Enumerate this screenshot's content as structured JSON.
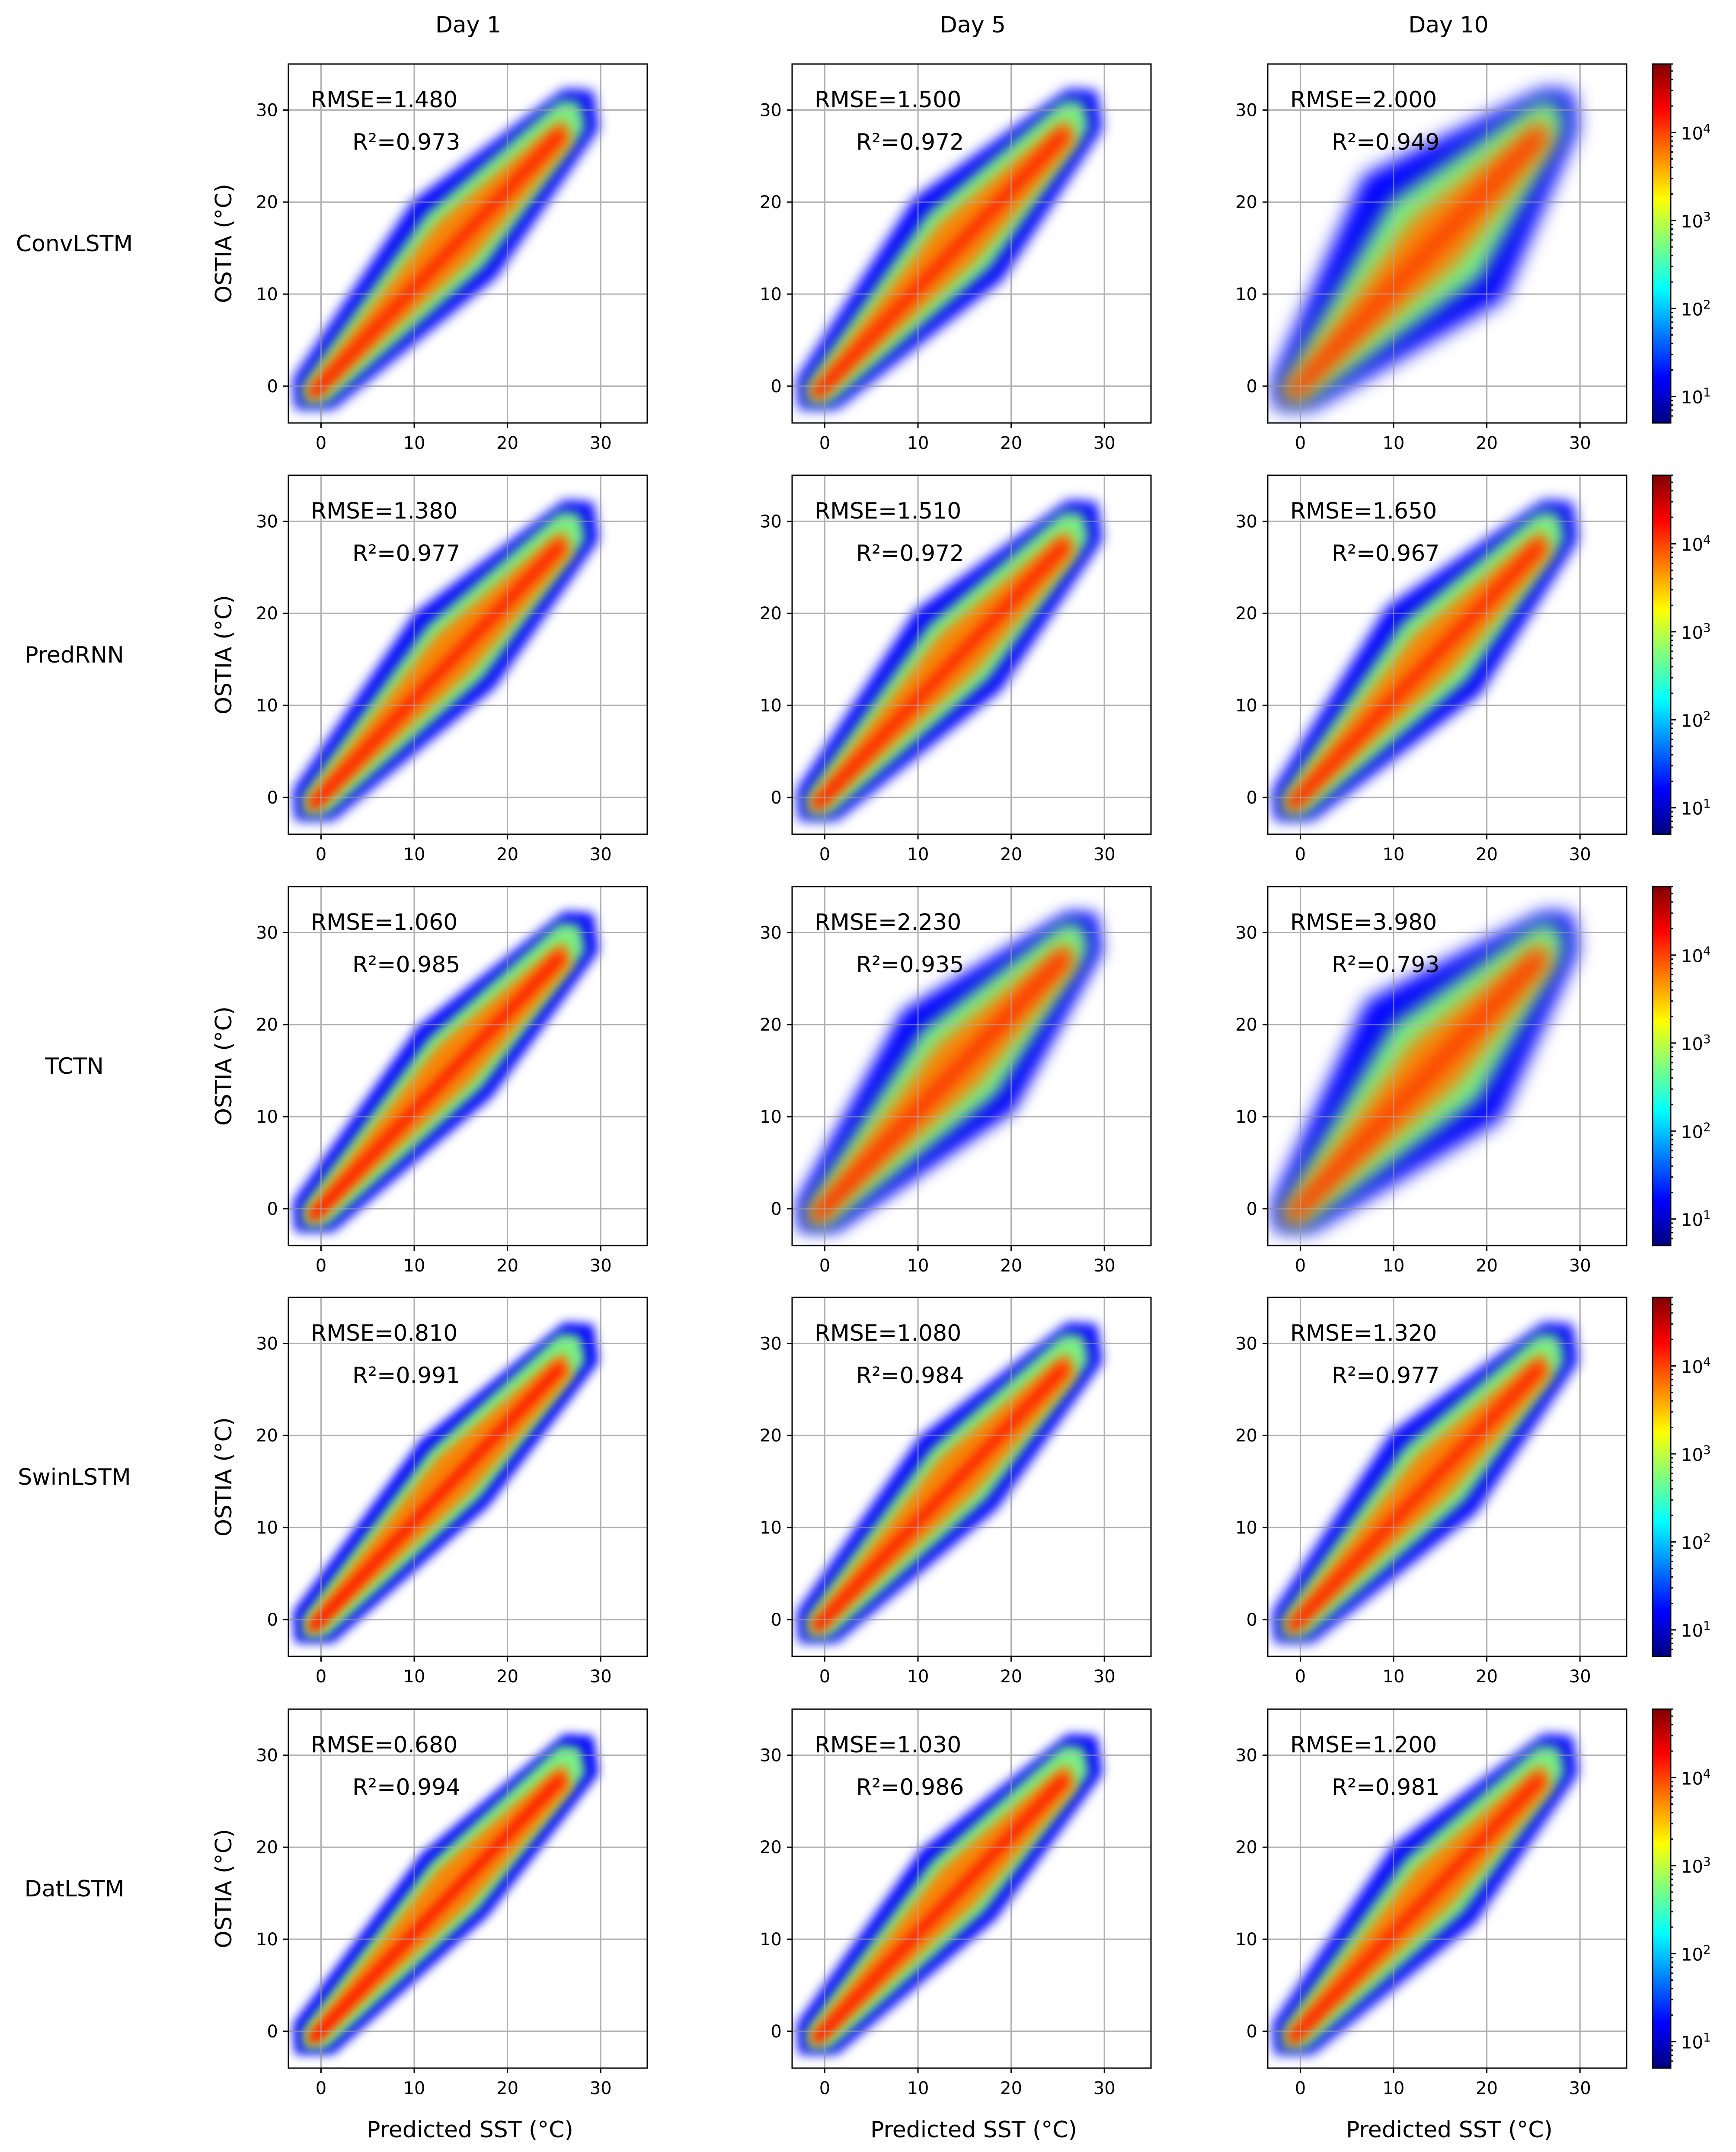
{
  "figure": {
    "x_axis_label": "Predicted SST (°C)",
    "y_axis_label": "OSTIA (°C)",
    "colorbar_ticks": [
      {
        "base": "10",
        "exp": "1",
        "value": 10
      },
      {
        "base": "10",
        "exp": "2",
        "value": 100
      },
      {
        "base": "10",
        "exp": "3",
        "value": 1000
      },
      {
        "base": "10",
        "exp": "4",
        "value": 10000
      }
    ],
    "colormap": [
      "#00007f",
      "#0000ff",
      "#007fff",
      "#00ffff",
      "#7fff7f",
      "#ffff00",
      "#ff7f00",
      "#ff0000",
      "#7f0000"
    ]
  },
  "chart_data": {
    "type": "heatmap",
    "subtype": "2d density scatter (log color scale)",
    "xlabel": "Predicted SST (°C)",
    "ylabel": "OSTIA (°C)",
    "xlim": [
      -3.5,
      35
    ],
    "ylim": [
      -4,
      35
    ],
    "xticks": [
      0,
      10,
      20,
      30
    ],
    "yticks": [
      0,
      10,
      20,
      30
    ],
    "grid": true,
    "color_scale": {
      "type": "log",
      "min": 5,
      "max": 60000,
      "ticks": [
        10,
        100,
        1000,
        10000
      ]
    },
    "columns": [
      "Day 1",
      "Day 5",
      "Day 10"
    ],
    "rows": [
      "ConvLSTM",
      "PredRNN",
      "TCTN",
      "SwinLSTM",
      "DatLSTM"
    ],
    "panels": [
      {
        "model": "ConvLSTM",
        "day": "Day 1",
        "rmse": "RMSE=1.480",
        "r2": "R²=0.973",
        "spread": 2.0
      },
      {
        "model": "ConvLSTM",
        "day": "Day 5",
        "rmse": "RMSE=1.500",
        "r2": "R²=0.972",
        "spread": 2.2
      },
      {
        "model": "ConvLSTM",
        "day": "Day 10",
        "rmse": "RMSE=2.000",
        "r2": "R²=0.949",
        "spread": 4.0
      },
      {
        "model": "PredRNN",
        "day": "Day 1",
        "rmse": "RMSE=1.380",
        "r2": "R²=0.977",
        "spread": 1.9
      },
      {
        "model": "PredRNN",
        "day": "Day 5",
        "rmse": "RMSE=1.510",
        "r2": "R²=0.972",
        "spread": 2.1
      },
      {
        "model": "PredRNN",
        "day": "Day 10",
        "rmse": "RMSE=1.650",
        "r2": "R²=0.967",
        "spread": 2.4
      },
      {
        "model": "TCTN",
        "day": "Day 1",
        "rmse": "RMSE=1.060",
        "r2": "R²=0.985",
        "spread": 1.7
      },
      {
        "model": "TCTN",
        "day": "Day 5",
        "rmse": "RMSE=2.230",
        "r2": "R²=0.935",
        "spread": 3.0
      },
      {
        "model": "TCTN",
        "day": "Day 10",
        "rmse": "RMSE=3.980",
        "r2": "R²=0.793",
        "spread": 3.8
      },
      {
        "model": "SwinLSTM",
        "day": "Day 1",
        "rmse": "RMSE=0.810",
        "r2": "R²=0.991",
        "spread": 1.5
      },
      {
        "model": "SwinLSTM",
        "day": "Day 5",
        "rmse": "RMSE=1.080",
        "r2": "R²=0.984",
        "spread": 1.8
      },
      {
        "model": "SwinLSTM",
        "day": "Day 10",
        "rmse": "RMSE=1.320",
        "r2": "R²=0.977",
        "spread": 2.1
      },
      {
        "model": "DatLSTM",
        "day": "Day 1",
        "rmse": "RMSE=0.680",
        "r2": "R²=0.994",
        "spread": 1.4
      },
      {
        "model": "DatLSTM",
        "day": "Day 5",
        "rmse": "RMSE=1.030",
        "r2": "R²=0.986",
        "spread": 1.7
      },
      {
        "model": "DatLSTM",
        "day": "Day 10",
        "rmse": "RMSE=1.200",
        "r2": "R²=0.981",
        "spread": 2.0
      }
    ]
  }
}
